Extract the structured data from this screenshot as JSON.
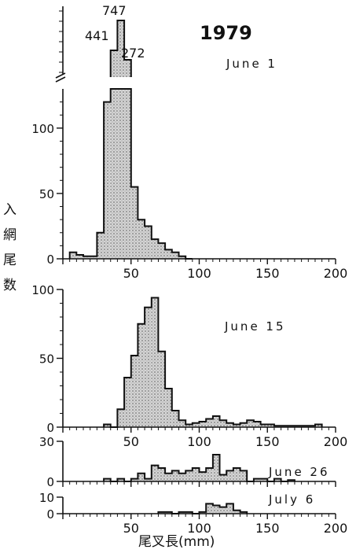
{
  "figure": {
    "year": "1979",
    "ylabel_chars": [
      "入",
      "網",
      "尾",
      "数"
    ],
    "xlabel": "尾叉長(mm)"
  },
  "chart_data": [
    {
      "type": "bar",
      "panel": "June 1",
      "label": "June 1",
      "bin_width_mm": 5,
      "xlim": [
        0,
        200
      ],
      "ylim": [
        0,
        130
      ],
      "broken_axis": true,
      "y_ticks": [
        0,
        50,
        100
      ],
      "x_ticks": [
        50,
        100,
        150,
        200
      ],
      "bins": [
        [
          5,
          5
        ],
        [
          10,
          3
        ],
        [
          15,
          2
        ],
        [
          20,
          2
        ],
        [
          25,
          20
        ],
        [
          30,
          120
        ],
        [
          35,
          441
        ],
        [
          40,
          747
        ],
        [
          45,
          272
        ],
        [
          50,
          55
        ],
        [
          55,
          30
        ],
        [
          60,
          25
        ],
        [
          65,
          15
        ],
        [
          70,
          12
        ],
        [
          75,
          7
        ],
        [
          80,
          5
        ],
        [
          85,
          2
        ],
        [
          90,
          0
        ]
      ],
      "annotations": [
        "441",
        "747",
        "272"
      ]
    },
    {
      "type": "bar",
      "panel": "June 15",
      "label": "June 15",
      "bin_width_mm": 5,
      "xlim": [
        0,
        200
      ],
      "ylim": [
        0,
        100
      ],
      "y_ticks": [
        0,
        50,
        100
      ],
      "x_ticks": [
        50,
        100,
        150,
        200
      ],
      "bins": [
        [
          30,
          2
        ],
        [
          35,
          0
        ],
        [
          40,
          13
        ],
        [
          45,
          36
        ],
        [
          50,
          52
        ],
        [
          55,
          75
        ],
        [
          60,
          87
        ],
        [
          65,
          94
        ],
        [
          70,
          55
        ],
        [
          75,
          28
        ],
        [
          80,
          12
        ],
        [
          85,
          5
        ],
        [
          90,
          2
        ],
        [
          95,
          3
        ],
        [
          100,
          4
        ],
        [
          105,
          6
        ],
        [
          110,
          8
        ],
        [
          115,
          5
        ],
        [
          120,
          3
        ],
        [
          125,
          2
        ],
        [
          130,
          3
        ],
        [
          135,
          5
        ],
        [
          140,
          4
        ],
        [
          145,
          2
        ],
        [
          150,
          2
        ],
        [
          155,
          1
        ],
        [
          160,
          1
        ],
        [
          165,
          1
        ],
        [
          170,
          1
        ],
        [
          175,
          1
        ],
        [
          180,
          1
        ],
        [
          185,
          2
        ]
      ]
    },
    {
      "type": "bar",
      "panel": "June 26",
      "label": "June 26",
      "bin_width_mm": 5,
      "xlim": [
        0,
        200
      ],
      "ylim": [
        0,
        30
      ],
      "y_ticks": [
        0,
        30
      ],
      "x_ticks": [
        50,
        100,
        150,
        200
      ],
      "bins": [
        [
          30,
          2
        ],
        [
          35,
          0
        ],
        [
          40,
          2
        ],
        [
          45,
          0
        ],
        [
          50,
          2
        ],
        [
          55,
          6
        ],
        [
          60,
          2
        ],
        [
          65,
          12
        ],
        [
          70,
          10
        ],
        [
          75,
          6
        ],
        [
          80,
          8
        ],
        [
          85,
          6
        ],
        [
          90,
          8
        ],
        [
          95,
          10
        ],
        [
          100,
          7
        ],
        [
          105,
          10
        ],
        [
          110,
          20
        ],
        [
          115,
          5
        ],
        [
          120,
          8
        ],
        [
          125,
          10
        ],
        [
          130,
          8
        ],
        [
          135,
          0
        ],
        [
          140,
          2
        ],
        [
          145,
          2
        ],
        [
          150,
          0
        ],
        [
          155,
          2
        ],
        [
          160,
          0
        ],
        [
          165,
          1
        ]
      ]
    },
    {
      "type": "bar",
      "panel": "July 6",
      "label": "July 6",
      "bin_width_mm": 5,
      "xlim": [
        0,
        200
      ],
      "ylim": [
        0,
        10
      ],
      "y_ticks": [
        0,
        10
      ],
      "x_ticks": [
        50,
        100,
        150,
        200
      ],
      "bins": [
        [
          70,
          1
        ],
        [
          75,
          1
        ],
        [
          80,
          0
        ],
        [
          85,
          1
        ],
        [
          90,
          1
        ],
        [
          95,
          0
        ],
        [
          100,
          1
        ],
        [
          105,
          6
        ],
        [
          110,
          5
        ],
        [
          115,
          4
        ],
        [
          120,
          6
        ],
        [
          125,
          2
        ],
        [
          130,
          1
        ]
      ]
    }
  ]
}
